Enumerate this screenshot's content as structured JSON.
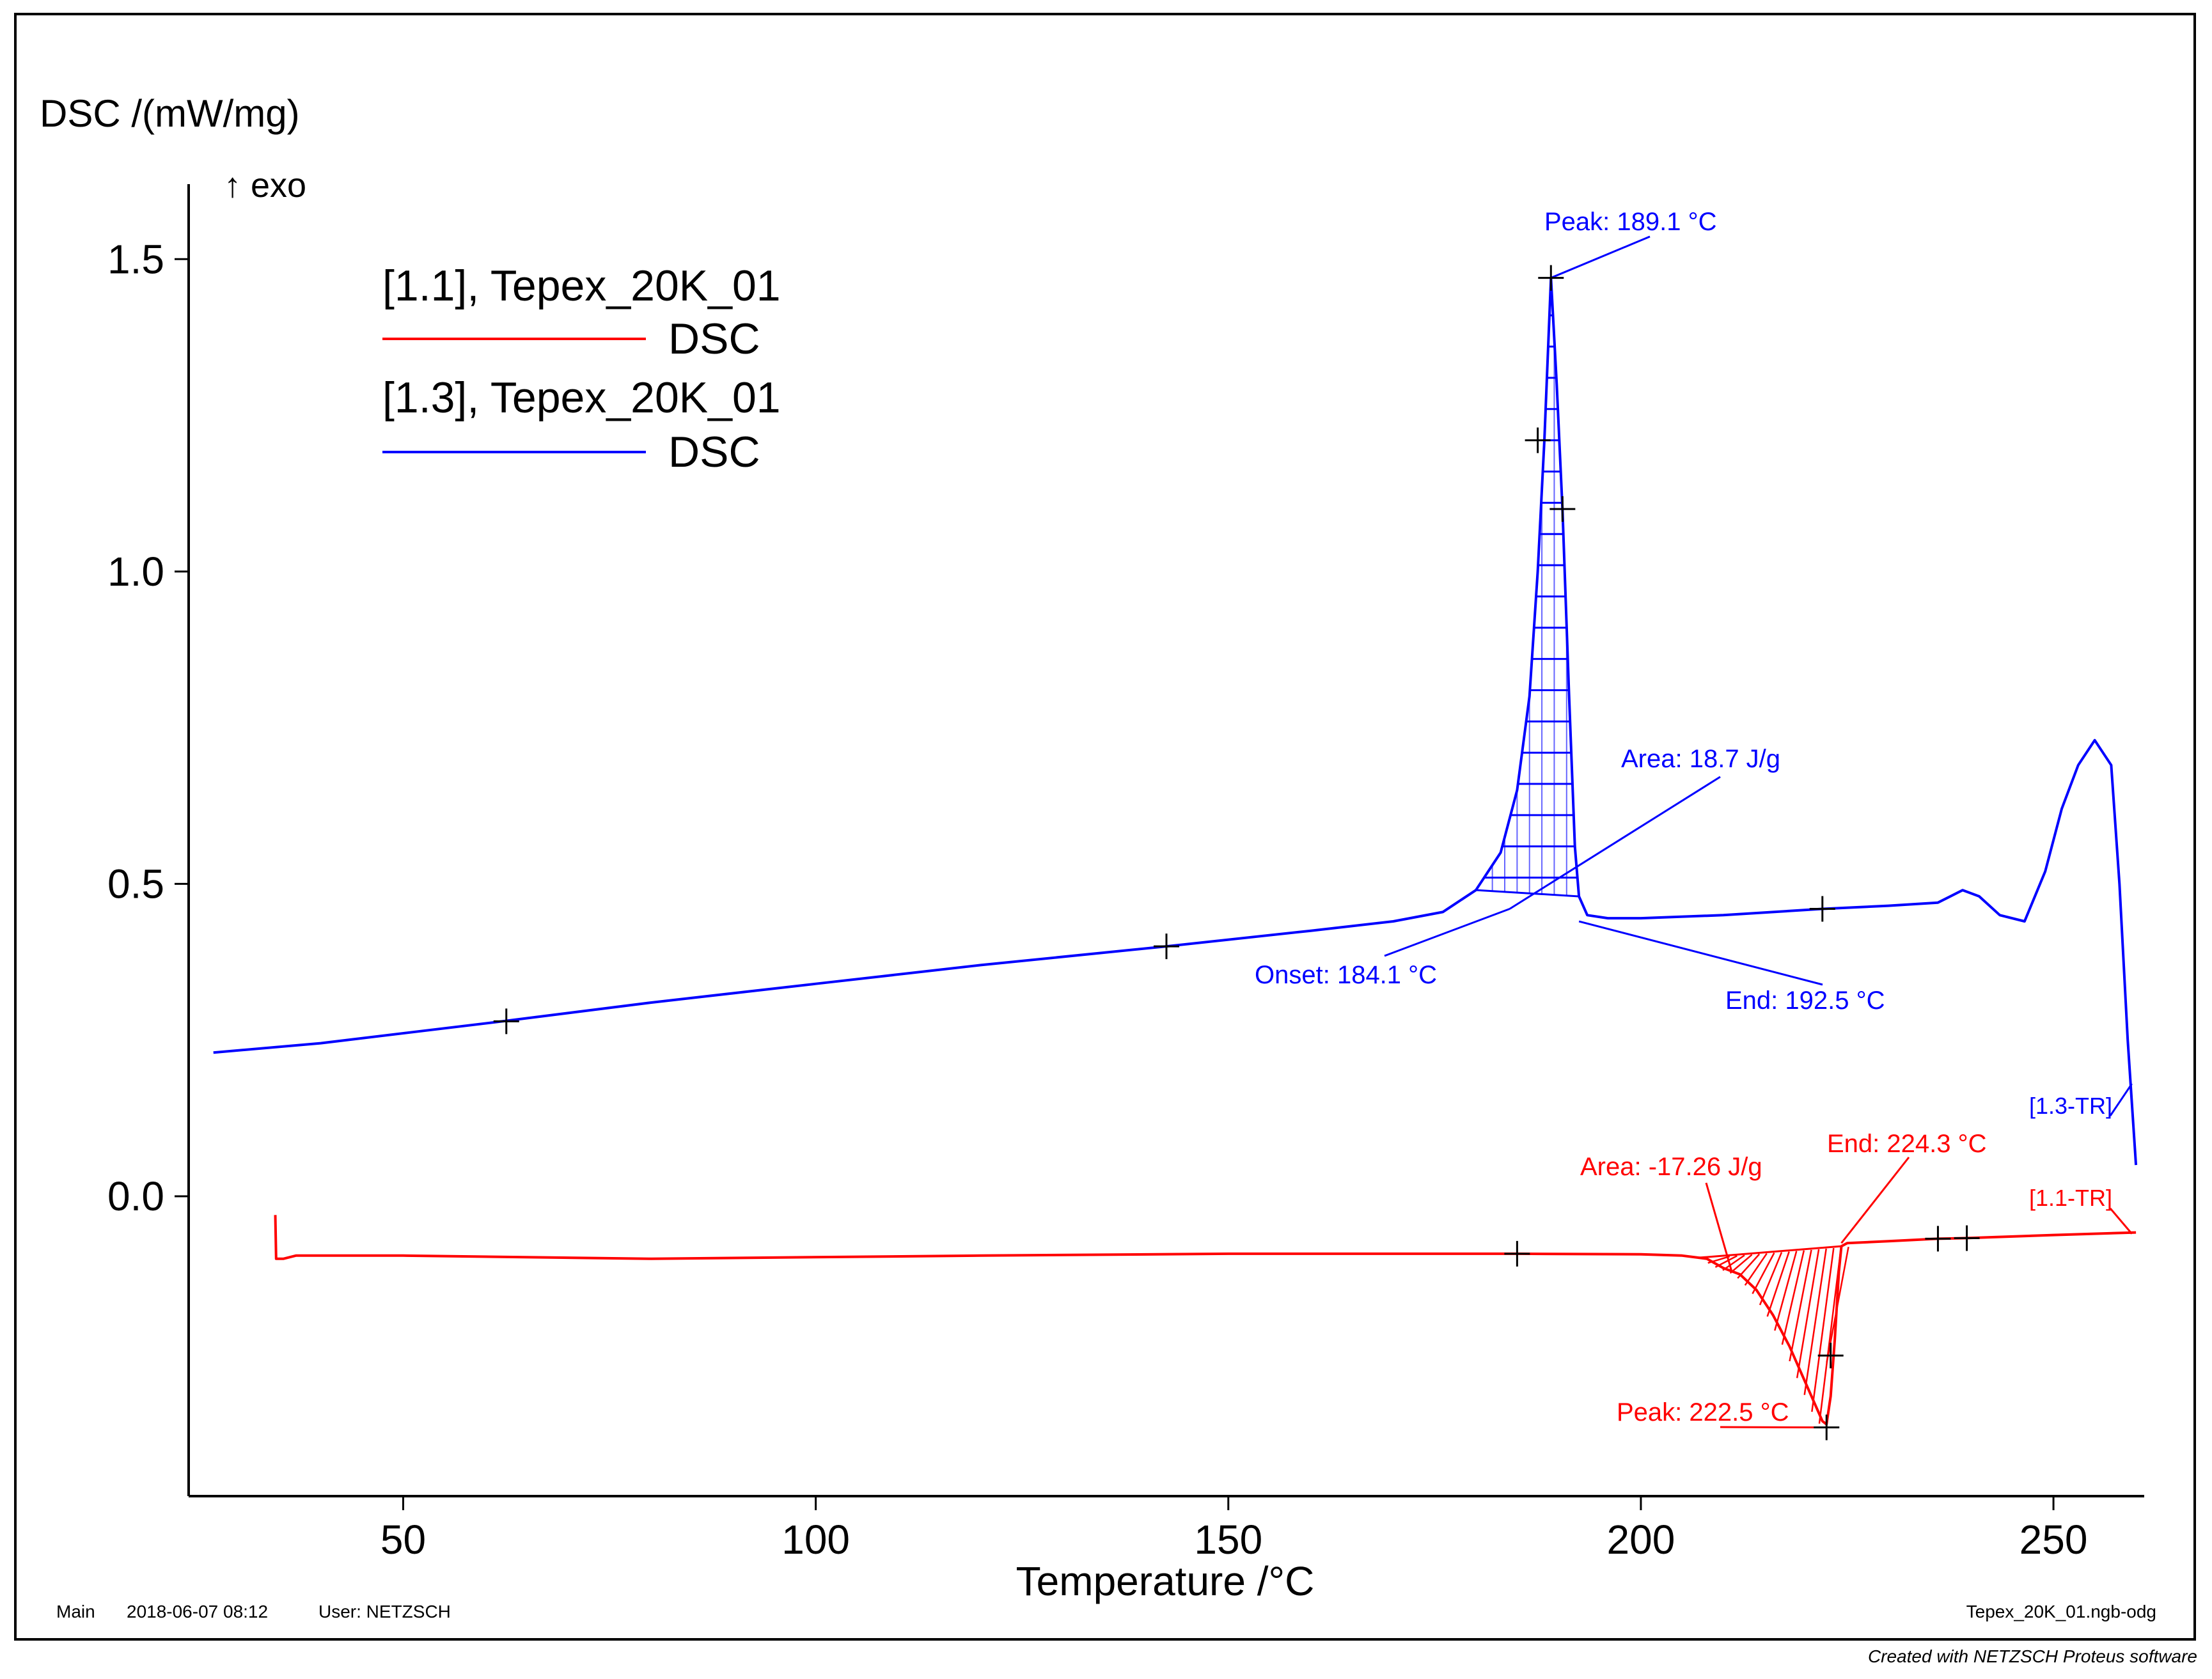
{
  "chart_data": {
    "type": "line",
    "ylabel": "DSC /(mW/mg)",
    "exo_label": "↑ exo",
    "xlabel": "Temperature /°C",
    "xlim": [
      24,
      261
    ],
    "ylim": [
      -0.48,
      1.62
    ],
    "xticks": [
      50,
      100,
      150,
      200,
      250
    ],
    "yticks": [
      0.0,
      0.5,
      1.0,
      1.5
    ],
    "ytick_labels": [
      "0.0",
      "0.5",
      "1.0",
      "1.5"
    ],
    "legend": {
      "position": "top-left",
      "entries": [
        {
          "file": "[1.1], Tepex_20K_01",
          "signal": "DSC",
          "color": "#ff0000"
        },
        {
          "file": "[1.3], Tepex_20K_01",
          "signal": "DSC",
          "color": "#0000ff"
        }
      ]
    },
    "series": [
      {
        "name": "[1.3], Tepex_20K_01 DSC",
        "color": "#0000ff",
        "x": [
          27,
          40,
          62,
          80,
          100,
          120,
          142.5,
          160,
          170,
          176,
          180,
          183,
          185,
          186.5,
          187.5,
          188.3,
          189.1,
          189.8,
          190.5,
          191.3,
          192,
          192.5,
          193.5,
          196,
          200,
          210,
          222,
          230,
          236,
          239,
          241,
          243.5,
          246.5,
          249,
          251,
          253,
          255,
          257,
          258,
          259,
          260
        ],
        "y": [
          0.23,
          0.245,
          0.28,
          0.31,
          0.34,
          0.37,
          0.4,
          0.425,
          0.44,
          0.455,
          0.49,
          0.55,
          0.65,
          0.8,
          1.0,
          1.21,
          1.47,
          1.3,
          1.1,
          0.8,
          0.56,
          0.48,
          0.45,
          0.445,
          0.445,
          0.45,
          0.46,
          0.465,
          0.47,
          0.49,
          0.48,
          0.45,
          0.44,
          0.52,
          0.62,
          0.69,
          0.73,
          0.69,
          0.5,
          0.25,
          0.05
        ]
      },
      {
        "name": "[1.1], Tepex_20K_01 DSC",
        "color": "#ff0000",
        "x": [
          34.5,
          34.6,
          35.5,
          37,
          50,
          80,
          120,
          150,
          185,
          200,
          205,
          208,
          210,
          212,
          214,
          216,
          218,
          220,
          222,
          222.5,
          223,
          223.5,
          224,
          224.3,
          225,
          230,
          236,
          239.5,
          250,
          260
        ],
        "y": [
          -0.03,
          -0.1,
          -0.1,
          -0.095,
          -0.095,
          -0.1,
          -0.095,
          -0.092,
          -0.092,
          -0.093,
          -0.095,
          -0.1,
          -0.115,
          -0.125,
          -0.15,
          -0.19,
          -0.24,
          -0.3,
          -0.36,
          -0.365,
          -0.32,
          -0.23,
          -0.12,
          -0.08,
          -0.075,
          -0.072,
          -0.068,
          -0.067,
          -0.062,
          -0.058
        ]
      }
    ],
    "annotations": {
      "blue_peak": "Peak: 189.1 °C",
      "blue_area": "Area: 18.7 J/g",
      "blue_onset": "Onset: 184.1 °C",
      "blue_end": "End: 192.5 °C",
      "blue_tr": "[1.3-TR]",
      "red_area": "Area: -17.26 J/g",
      "red_end": "End: 224.3 °C",
      "red_tr": "[1.1-TR]",
      "red_peak": "Peak: 222.5 °C"
    },
    "markers_blue": [
      [
        62.5,
        0.28
      ],
      [
        142.5,
        0.4
      ],
      [
        187.5,
        1.21
      ],
      [
        189.1,
        1.47
      ],
      [
        190.5,
        1.1
      ],
      [
        222,
        0.46
      ]
    ],
    "markers_red": [
      [
        185,
        -0.092
      ],
      [
        223,
        -0.255
      ],
      [
        222.5,
        -0.37
      ],
      [
        236,
        -0.068
      ],
      [
        239.5,
        -0.067
      ]
    ]
  },
  "footer": {
    "left": "Main",
    "date": "2018-06-07 08:12",
    "user": "User: NETZSCH",
    "file": "Tepex_20K_01.ngb-odg",
    "credit": "Created with NETZSCH Proteus software"
  }
}
